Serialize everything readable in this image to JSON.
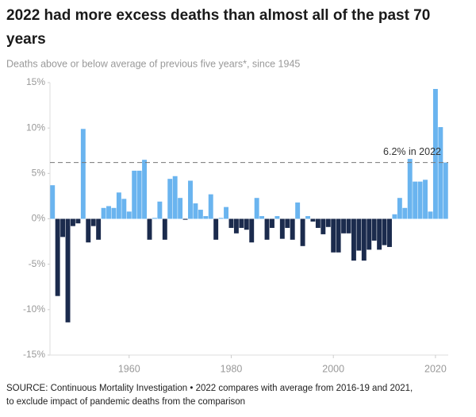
{
  "chart_data": {
    "type": "bar",
    "title": [
      "2022 had more excess deaths than almost all of the past 70",
      "years"
    ],
    "subtitle": "Deaths above or below average of previous five years*, since 1945",
    "source": [
      "SOURCE: Continuous Mortality Investigation • 2022 compares with average from 2016-19 and 2021,",
      "to exclude impact of pandemic deaths from the comparison"
    ],
    "x": [
      1945,
      1946,
      1947,
      1948,
      1949,
      1950,
      1951,
      1952,
      1953,
      1954,
      1955,
      1956,
      1957,
      1958,
      1959,
      1960,
      1961,
      1962,
      1963,
      1964,
      1965,
      1966,
      1967,
      1968,
      1969,
      1970,
      1971,
      1972,
      1973,
      1974,
      1975,
      1976,
      1977,
      1978,
      1979,
      1980,
      1981,
      1982,
      1983,
      1984,
      1985,
      1986,
      1987,
      1988,
      1989,
      1990,
      1991,
      1992,
      1993,
      1994,
      1995,
      1996,
      1997,
      1998,
      1999,
      2000,
      2001,
      2002,
      2003,
      2004,
      2005,
      2006,
      2007,
      2008,
      2009,
      2010,
      2011,
      2012,
      2013,
      2014,
      2015,
      2016,
      2017,
      2018,
      2019,
      2020,
      2021,
      2022
    ],
    "values": [
      3.7,
      -8.5,
      -2.0,
      -11.4,
      -0.8,
      -0.5,
      9.9,
      -2.6,
      -0.8,
      -2.3,
      1.2,
      1.4,
      1.2,
      2.9,
      2.2,
      0.8,
      5.3,
      5.3,
      6.5,
      -2.3,
      0.1,
      1.9,
      -2.3,
      4.4,
      4.7,
      2.3,
      -0.1,
      4.2,
      1.7,
      1.0,
      0.3,
      2.7,
      -2.3,
      0.1,
      1.3,
      -1.0,
      -1.6,
      -1.0,
      -1.2,
      -2.6,
      2.3,
      0.3,
      -2.3,
      -1.0,
      0.3,
      -2.2,
      -1.0,
      -2.3,
      1.8,
      -3.0,
      0.3,
      -0.3,
      -1.0,
      -1.7,
      -0.9,
      -3.7,
      -3.7,
      -1.6,
      -1.6,
      -4.6,
      -3.5,
      -4.6,
      -3.4,
      -2.4,
      -3.4,
      -2.9,
      -3.1,
      0.5,
      2.3,
      1.2,
      6.6,
      4.1,
      4.1,
      4.3,
      0.8,
      14.3,
      10.1,
      6.2
    ],
    "positive_color": "#6ab4ef",
    "negative_color": "#1b2b4d",
    "xlim": [
      1944.5,
      2022.5
    ],
    "xticks": [
      1960,
      1980,
      2000,
      2020
    ],
    "ylim": [
      -15,
      15
    ],
    "yticks": [
      {
        "value": -15,
        "label": "-15%"
      },
      {
        "value": -10,
        "label": "-10%"
      },
      {
        "value": -5,
        "label": "-5%"
      },
      {
        "value": 0,
        "label": "0%"
      },
      {
        "value": 5,
        "label": "5%"
      },
      {
        "value": 10,
        "label": "10%"
      },
      {
        "value": 15,
        "label": "15%"
      }
    ],
    "reference_line": {
      "value": 6.2,
      "label": "6.2% in 2022"
    }
  }
}
